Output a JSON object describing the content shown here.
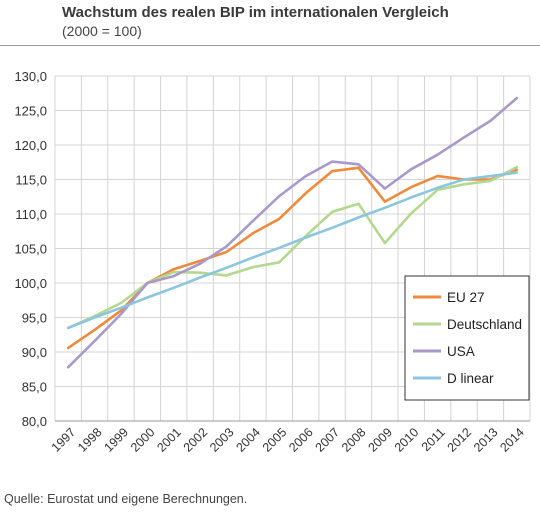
{
  "header": {
    "title": "Wachstum des realen BIP im internationalen Vergleich",
    "subtitle": "(2000 = 100)"
  },
  "footer": {
    "source": "Quelle: Eurostat und eigene Berechnungen."
  },
  "chart_data": {
    "type": "line",
    "title": "Wachstum des realen BIP im internationalen Vergleich",
    "subtitle": "(2000 = 100)",
    "categories": [
      "1997",
      "1998",
      "1999",
      "2000",
      "2001",
      "2002",
      "2003",
      "2004",
      "2005",
      "2006",
      "2007",
      "2008",
      "2009",
      "2010",
      "2011",
      "2012",
      "2013",
      "2014"
    ],
    "y_ticks": [
      "80,0",
      "85,0",
      "90,0",
      "95,0",
      "100,0",
      "105,0",
      "110,0",
      "115,0",
      "120,0",
      "125,0",
      "130,0"
    ],
    "ylim": [
      80,
      130
    ],
    "grid": true,
    "legend_position": "bottom-right",
    "series": [
      {
        "name": "EU 27",
        "color": "#ee8a3c",
        "values": [
          90.6,
          93.2,
          96.0,
          100.0,
          102.0,
          103.2,
          104.5,
          107.2,
          109.3,
          113.0,
          116.2,
          116.7,
          111.8,
          113.9,
          115.5,
          115.0,
          115.0,
          116.4
        ]
      },
      {
        "name": "Deutschland",
        "color": "#b3d88f",
        "values": [
          93.5,
          95.2,
          97.1,
          100.0,
          101.6,
          101.5,
          101.1,
          102.3,
          103.0,
          106.8,
          110.3,
          111.5,
          105.8,
          110.1,
          113.5,
          114.3,
          114.8,
          116.8
        ]
      },
      {
        "name": "USA",
        "color": "#a999c9",
        "values": [
          87.8,
          91.6,
          95.5,
          100.0,
          101.0,
          102.8,
          105.3,
          109.0,
          112.6,
          115.5,
          117.6,
          117.2,
          113.7,
          116.5,
          118.6,
          121.1,
          123.5,
          126.8
        ]
      },
      {
        "name": "D linear",
        "color": "#8cc5df",
        "values": [
          93.5,
          95.0,
          96.4,
          97.9,
          99.3,
          100.8,
          102.2,
          103.7,
          105.1,
          106.6,
          108.0,
          109.5,
          110.9,
          112.4,
          113.8,
          115.0,
          115.5,
          116.0
        ]
      }
    ]
  }
}
